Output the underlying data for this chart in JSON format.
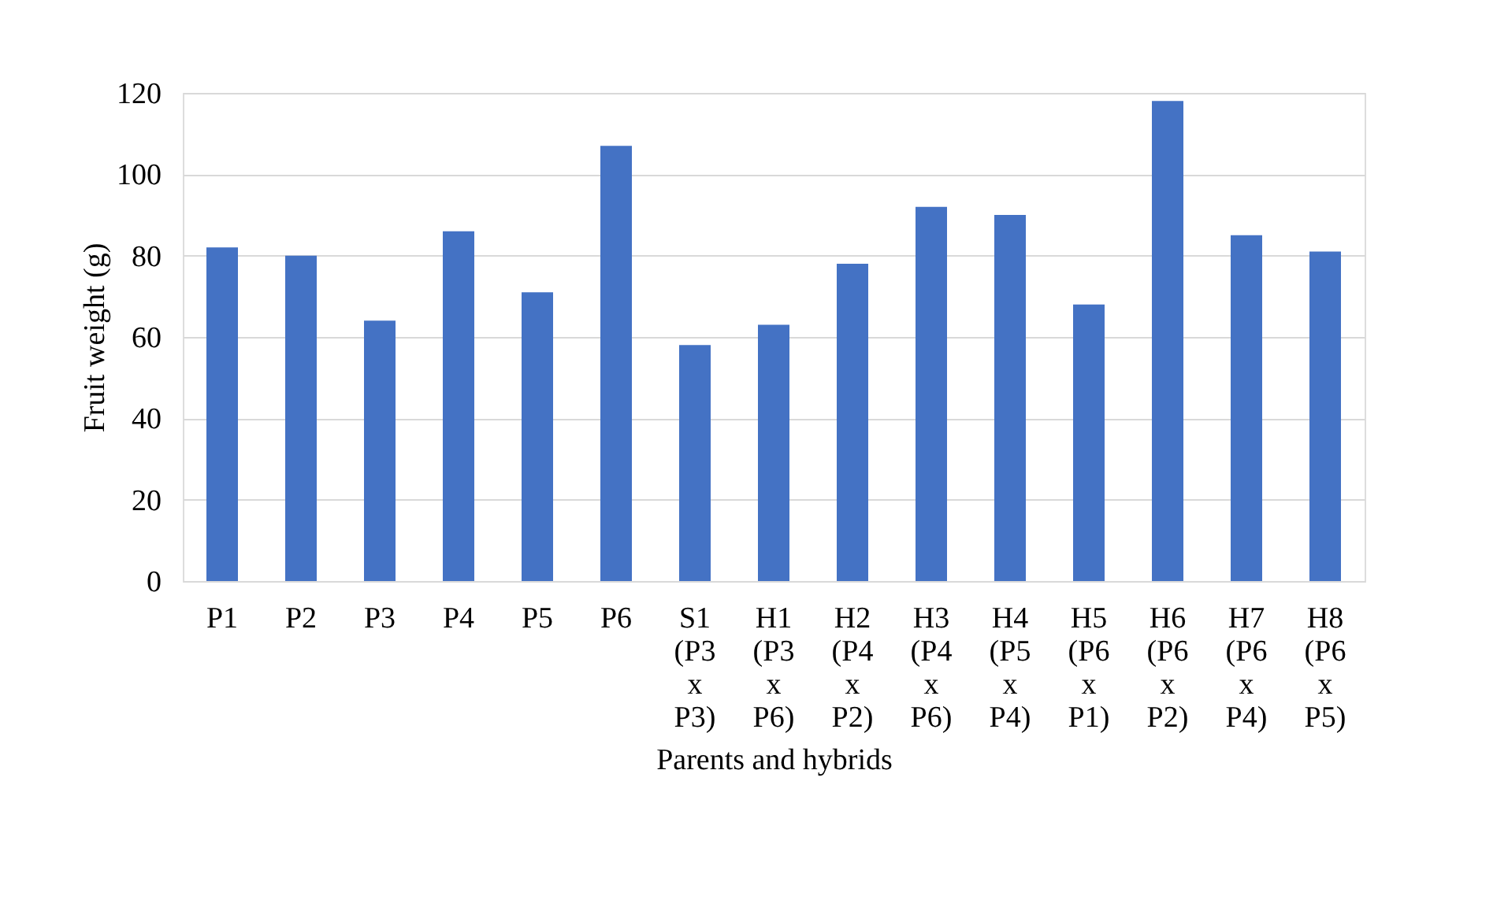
{
  "chart_data": {
    "type": "bar",
    "xlabel": "Parents and hybrids",
    "ylabel": "Fruit weight (g)",
    "categories": [
      "P1",
      "P2",
      "P3",
      "P4",
      "P5",
      "P6",
      "S1 (P3 x P3)",
      "H1 (P3 x P6)",
      "H2 (P4 x P2)",
      "H3 (P4 x P6)",
      "H4 (P5 x P4)",
      "H5 (P6 x P1)",
      "H6 (P6 x P2)",
      "H7 (P6 x P4)",
      "H8 (P6 x P5)"
    ],
    "values": [
      82,
      80,
      64,
      86,
      71,
      107,
      58,
      63,
      78,
      92,
      90,
      68,
      118,
      85,
      81
    ],
    "color": "#4472c4",
    "ylim": [
      0,
      120
    ],
    "yticks": [
      0,
      20,
      40,
      60,
      80,
      100,
      120
    ],
    "grid": "y"
  }
}
